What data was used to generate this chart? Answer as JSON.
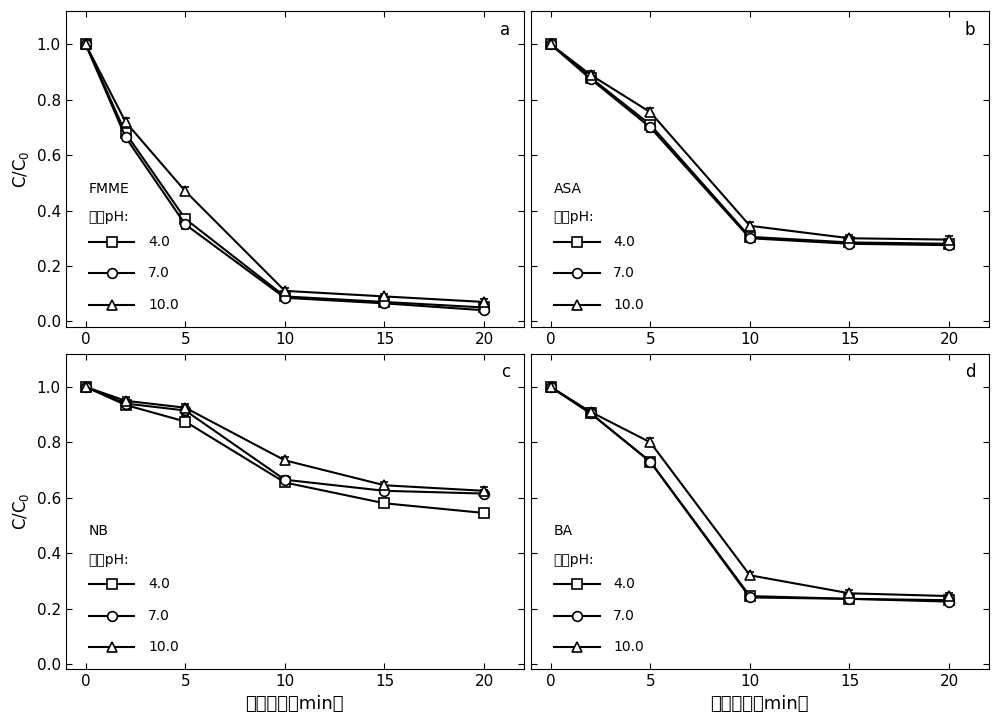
{
  "subplots": [
    {
      "label": "a",
      "compound": "FMME",
      "x": [
        0,
        2,
        5,
        10,
        15,
        20
      ],
      "y_ph4": [
        1.0,
        0.68,
        0.37,
        0.09,
        0.07,
        0.05
      ],
      "y_ph7": [
        1.0,
        0.665,
        0.35,
        0.085,
        0.065,
        0.04
      ],
      "y_ph10": [
        1.0,
        0.72,
        0.47,
        0.11,
        0.09,
        0.07
      ],
      "yerr_ph4": [
        0.01,
        0.015,
        0.015,
        0.01,
        0.01,
        0.01
      ],
      "yerr_ph7": [
        0.01,
        0.015,
        0.015,
        0.01,
        0.01,
        0.01
      ],
      "yerr_ph10": [
        0.01,
        0.015,
        0.015,
        0.01,
        0.01,
        0.01
      ]
    },
    {
      "label": "b",
      "compound": "ASA",
      "x": [
        0,
        2,
        5,
        10,
        15,
        20
      ],
      "y_ph4": [
        1.0,
        0.88,
        0.71,
        0.305,
        0.285,
        0.28
      ],
      "y_ph7": [
        1.0,
        0.875,
        0.7,
        0.3,
        0.28,
        0.275
      ],
      "y_ph10": [
        1.0,
        0.89,
        0.755,
        0.345,
        0.3,
        0.295
      ],
      "yerr_ph4": [
        0.01,
        0.015,
        0.015,
        0.012,
        0.012,
        0.012
      ],
      "yerr_ph7": [
        0.01,
        0.015,
        0.015,
        0.012,
        0.012,
        0.012
      ],
      "yerr_ph10": [
        0.01,
        0.015,
        0.015,
        0.012,
        0.012,
        0.012
      ]
    },
    {
      "label": "c",
      "compound": "NB",
      "x": [
        0,
        2,
        5,
        10,
        15,
        20
      ],
      "y_ph4": [
        1.0,
        0.935,
        0.875,
        0.655,
        0.58,
        0.545
      ],
      "y_ph7": [
        1.0,
        0.94,
        0.915,
        0.665,
        0.625,
        0.615
      ],
      "y_ph10": [
        1.0,
        0.95,
        0.925,
        0.735,
        0.645,
        0.625
      ],
      "yerr_ph4": [
        0.01,
        0.015,
        0.015,
        0.012,
        0.012,
        0.012
      ],
      "yerr_ph7": [
        0.01,
        0.015,
        0.015,
        0.012,
        0.012,
        0.012
      ],
      "yerr_ph10": [
        0.01,
        0.015,
        0.015,
        0.012,
        0.012,
        0.012
      ]
    },
    {
      "label": "d",
      "compound": "BA",
      "x": [
        0,
        2,
        5,
        10,
        15,
        20
      ],
      "y_ph4": [
        1.0,
        0.905,
        0.73,
        0.245,
        0.235,
        0.23
      ],
      "y_ph7": [
        1.0,
        0.905,
        0.73,
        0.24,
        0.235,
        0.225
      ],
      "y_ph10": [
        1.0,
        0.91,
        0.8,
        0.32,
        0.255,
        0.245
      ],
      "yerr_ph4": [
        0.01,
        0.015,
        0.015,
        0.012,
        0.012,
        0.012
      ],
      "yerr_ph7": [
        0.01,
        0.015,
        0.015,
        0.012,
        0.012,
        0.012
      ],
      "yerr_ph10": [
        0.01,
        0.015,
        0.015,
        0.012,
        0.012,
        0.012
      ]
    }
  ],
  "ylabel": "C/C0",
  "xlabel": "reaction_time",
  "ylim": [
    0.0,
    1.1
  ],
  "yticks": [
    0.0,
    0.2,
    0.4,
    0.6,
    0.8,
    1.0
  ],
  "xticks": [
    0,
    5,
    10,
    15,
    20
  ],
  "legend_ph4": "4.0",
  "legend_ph7": "7.0",
  "legend_ph10": "10.0",
  "line_color": "#000000",
  "marker_size": 7,
  "linewidth": 1.5,
  "capsize": 3
}
